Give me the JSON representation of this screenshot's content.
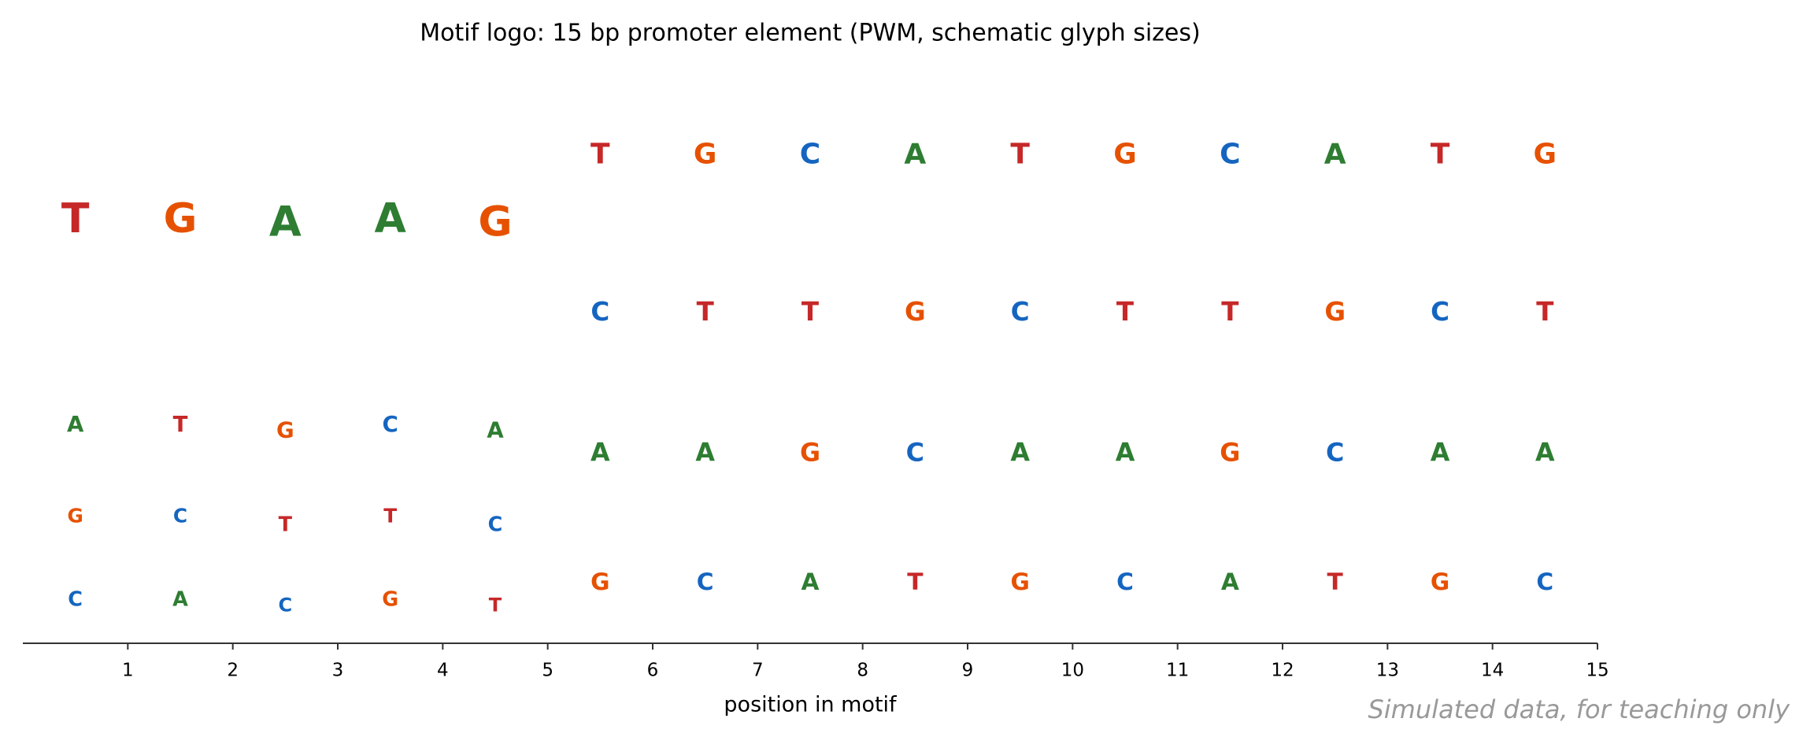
{
  "chart_data": {
    "type": "logo",
    "title": "Motif logo: 15 bp promoter element (PWM, schematic glyph sizes)",
    "xlabel": "position in motif",
    "annotation": "Simulated data, for teaching only",
    "xlim": [
      0,
      15
    ],
    "xticks": [
      1,
      2,
      3,
      4,
      5,
      6,
      7,
      8,
      9,
      10,
      11,
      12,
      13,
      14,
      15
    ],
    "colors": {
      "A": "#2e7d32",
      "C": "#1565c0",
      "G": "#e65100",
      "T": "#c62828"
    },
    "positions": [
      {
        "letters": [
          "C",
          "G",
          "A",
          "T"
        ],
        "values": [
          0.15,
          0.14,
          0.18,
          0.53
        ]
      },
      {
        "letters": [
          "A",
          "C",
          "T",
          "G"
        ],
        "values": [
          0.15,
          0.14,
          0.18,
          0.53
        ]
      },
      {
        "letters": [
          "C",
          "T",
          "G",
          "A"
        ],
        "values": [
          0.13,
          0.15,
          0.18,
          0.54
        ]
      },
      {
        "letters": [
          "G",
          "T",
          "C",
          "A"
        ],
        "values": [
          0.15,
          0.14,
          0.18,
          0.53
        ]
      },
      {
        "letters": [
          "T",
          "C",
          "A",
          "G"
        ],
        "values": [
          0.13,
          0.15,
          0.18,
          0.54
        ]
      },
      {
        "letters": [
          "G",
          "A",
          "C",
          "T"
        ],
        "values": [
          0.21,
          0.24,
          0.25,
          0.3
        ]
      },
      {
        "letters": [
          "C",
          "A",
          "T",
          "G"
        ],
        "values": [
          0.21,
          0.24,
          0.25,
          0.3
        ]
      },
      {
        "letters": [
          "A",
          "G",
          "T",
          "C"
        ],
        "values": [
          0.21,
          0.24,
          0.25,
          0.3
        ]
      },
      {
        "letters": [
          "T",
          "C",
          "G",
          "A"
        ],
        "values": [
          0.21,
          0.24,
          0.25,
          0.3
        ]
      },
      {
        "letters": [
          "G",
          "A",
          "C",
          "T"
        ],
        "values": [
          0.21,
          0.24,
          0.25,
          0.3
        ]
      },
      {
        "letters": [
          "C",
          "A",
          "T",
          "G"
        ],
        "values": [
          0.21,
          0.24,
          0.25,
          0.3
        ]
      },
      {
        "letters": [
          "A",
          "G",
          "T",
          "C"
        ],
        "values": [
          0.21,
          0.24,
          0.25,
          0.3
        ]
      },
      {
        "letters": [
          "T",
          "C",
          "G",
          "A"
        ],
        "values": [
          0.21,
          0.24,
          0.25,
          0.3
        ]
      },
      {
        "letters": [
          "G",
          "A",
          "C",
          "T"
        ],
        "values": [
          0.21,
          0.24,
          0.25,
          0.3
        ]
      },
      {
        "letters": [
          "C",
          "A",
          "T",
          "G"
        ],
        "values": [
          0.21,
          0.24,
          0.25,
          0.3
        ]
      }
    ]
  }
}
